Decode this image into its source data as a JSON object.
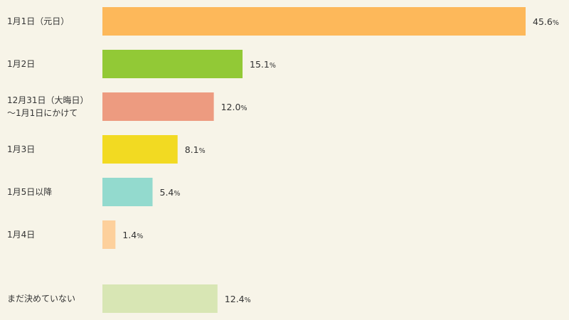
{
  "chart_data": {
    "type": "bar",
    "orientation": "horizontal",
    "title": "",
    "xlabel": "",
    "ylabel": "",
    "unit": "%",
    "xlim": [
      0,
      45.6
    ],
    "grid": false,
    "legend": "none",
    "categories": [
      [
        "1月1日（元日）"
      ],
      [
        "1月2日"
      ],
      [
        "12月31日（大晦日）",
        "〜1月1日にかけて"
      ],
      [
        "1月3日"
      ],
      [
        "1月5日以降"
      ],
      [
        "1月4日"
      ],
      [
        "まだ決めていない"
      ]
    ],
    "values": [
      45.6,
      15.1,
      12.0,
      8.1,
      5.4,
      1.4,
      12.4
    ],
    "value_labels": [
      "45.6",
      "15.1",
      "12.0",
      "8.1",
      "5.4",
      "1.4",
      "12.4"
    ],
    "colors": [
      "#fdb85a",
      "#92c936",
      "#ed9b80",
      "#f2da22",
      "#93dace",
      "#fdd09c",
      "#d8e6b4"
    ]
  }
}
